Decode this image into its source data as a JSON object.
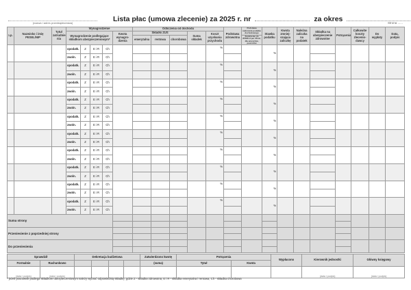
{
  "header": {
    "title_prefix": "Lista płac (umowa zlecenie) za 2025 r. nr",
    "title_period": "za okres",
    "employer_caption": "(nazwa i adres przedsiębiorstwa)",
    "page_label": "Strona"
  },
  "columns": {
    "lp": "Lp.",
    "name": "Nazwisko i imię PESEL/NIP",
    "title": "Tytuł zatrudnie-nia",
    "wynagrodzenie": "Wynagrodzenie",
    "wynagr_sub": "Wynagrodzenie podlegające składkom ubezpieczeniowym*",
    "kwota_wynagr": "Kwota wynagro-dzenia",
    "odliczenia": "Odliczenia od dochodu",
    "zus": "Składki ZUS",
    "emerytalne": "emerytalna",
    "rentowe": "rentowa",
    "chorobowe": "chorobowa",
    "suma": "Suma składek",
    "koszt": "Koszt uzyskania przychodu",
    "podstawa_zdrow": "Podstawa zdrowotna",
    "podstawa_doch": "Podstawa naliczania podatku dochodowego",
    "zwolnienie": "Zwolnienie do 85528 zł per 26 lat, dla emerytów, powrotów",
    "stawka": "Stawka podatku",
    "kwota_zmn": "Kwota zmniej-szająca zaliczkę",
    "nalezna": "Należna zaliczka na podatek",
    "skladka_zdrow": "Składka na ubezpieczenie zdrowotne",
    "potracenia": "Potrącenia",
    "calkowite": "Całkowite koszty zlecenio-dawcy",
    "do_wyplaty": "Do wypłaty",
    "data_podpis": "Data, podpis"
  },
  "row_labels": {
    "opodatk": "opodatk.",
    "zwoln": "zwoln.",
    "z": "Z",
    "eir": "E i R",
    "ch": "Ch",
    "pct": "%"
  },
  "employee_rows": 10,
  "summary": [
    "Suma strony",
    "Przeniesienie z poprzedniej strony",
    "Do przeniesienia"
  ],
  "footer": {
    "sprawdzil": "Sprawdził",
    "formalnie": "Formalnie",
    "rachunkowo": "Rachunkowo",
    "dekretacja": "Dekretacja budżetowa",
    "zatwierdzono": "Zatwierdzono kwotę",
    "suma": "(suma)",
    "potracenia": "Potrącenia",
    "tytul": "Tytuł",
    "kwota": "Kwota",
    "wyplacono": "Wypłacono",
    "kierownik": "Kierownik jednostki",
    "ksiegowy": "Główny księgowy",
    "data_podpis": "(data i podpis)"
  },
  "footnote": "* jeżeli pracownik podlega składkom ubezpieczeniowym należy wybrać odpowiednią składkę, gdzie Z - składka zdrowotna, E i R - składka emerytalna i rentowa, Ch - składka chorobowa"
}
